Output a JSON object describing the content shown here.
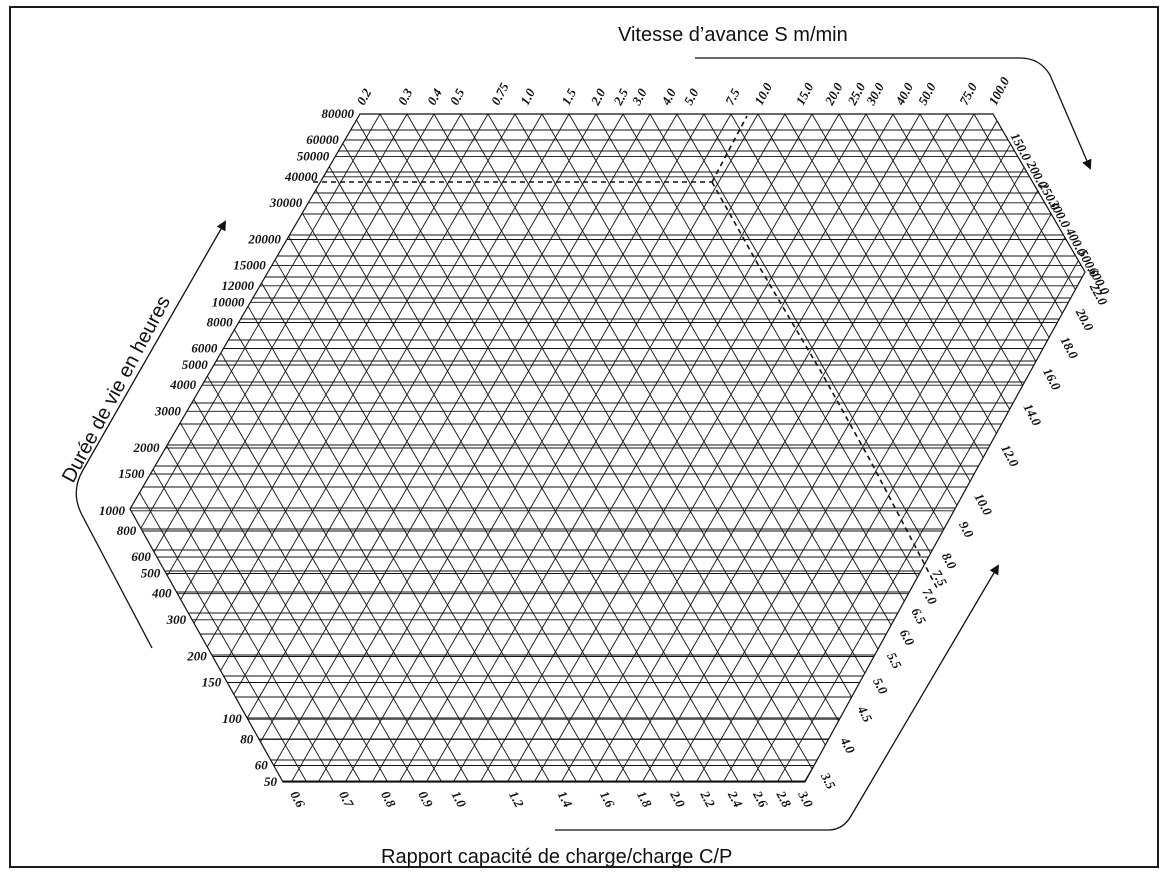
{
  "chart_data": {
    "type": "nomogram",
    "axes": {
      "feed_speed": {
        "title": "Vitesse d’avance S m/min",
        "ticks": [
          "0.2",
          "0.3",
          "0.4",
          "0.5",
          "0.75",
          "1.0",
          "1.5",
          "2.0",
          "2.5",
          "3.0",
          "4.0",
          "5.0",
          "7.5",
          "10.0",
          "15.0",
          "20.0",
          "25.0",
          "30.0",
          "40.0",
          "50.0",
          "75.0",
          "100.0",
          "150.0",
          "200.0",
          "250.0",
          "300.0",
          "400.0",
          "500.0",
          "600.0"
        ]
      },
      "life_hours": {
        "title": "Durée de vie en heures",
        "ticks": [
          "80000",
          "60000",
          "50000",
          "40000",
          "30000",
          "20000",
          "15000",
          "12000",
          "10000",
          "8000",
          "6000",
          "5000",
          "4000",
          "3000",
          "2000",
          "1500",
          "1000",
          "800",
          "600",
          "500",
          "400",
          "300",
          "200",
          "150",
          "100",
          "80",
          "60",
          "50"
        ]
      },
      "load_ratio": {
        "title": "Rapport capacité de charge/charge C/P",
        "ticks": [
          "0.6",
          "0.7",
          "0.8",
          "0.9",
          "1.0",
          "1.2",
          "1.4",
          "1.6",
          "1.8",
          "2.0",
          "2.2",
          "2.4",
          "2.6",
          "2.8",
          "3.0",
          "3.5",
          "4.0",
          "4.5",
          "5.0",
          "5.5",
          "6.0",
          "6.5",
          "7.0",
          "7.5",
          "8.0",
          "9.0",
          "10.0",
          "12.0",
          "14.0",
          "16.0",
          "18.0",
          "20.0",
          "22.0"
        ]
      }
    },
    "example": {
      "life_hours": "40000",
      "feed_speed": "10.0",
      "load_ratio": "8.0"
    }
  },
  "colors": {
    "ink": "#111111",
    "background": "#ffffff"
  }
}
